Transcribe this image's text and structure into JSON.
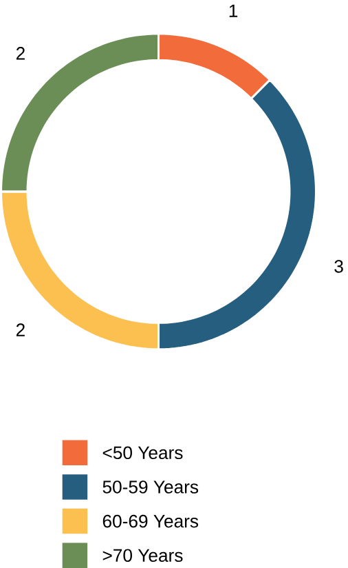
{
  "chart_data": {
    "type": "donut",
    "categories": [
      "<50 Years",
      "50-59 Years",
      "60-69 Years",
      ">70 Years"
    ],
    "values": [
      1,
      3,
      2,
      2
    ],
    "colors": [
      "#f26b3a",
      "#255e7e",
      "#fbc04f",
      "#6b8e57"
    ],
    "data_labels": true,
    "legend": "bottom"
  }
}
